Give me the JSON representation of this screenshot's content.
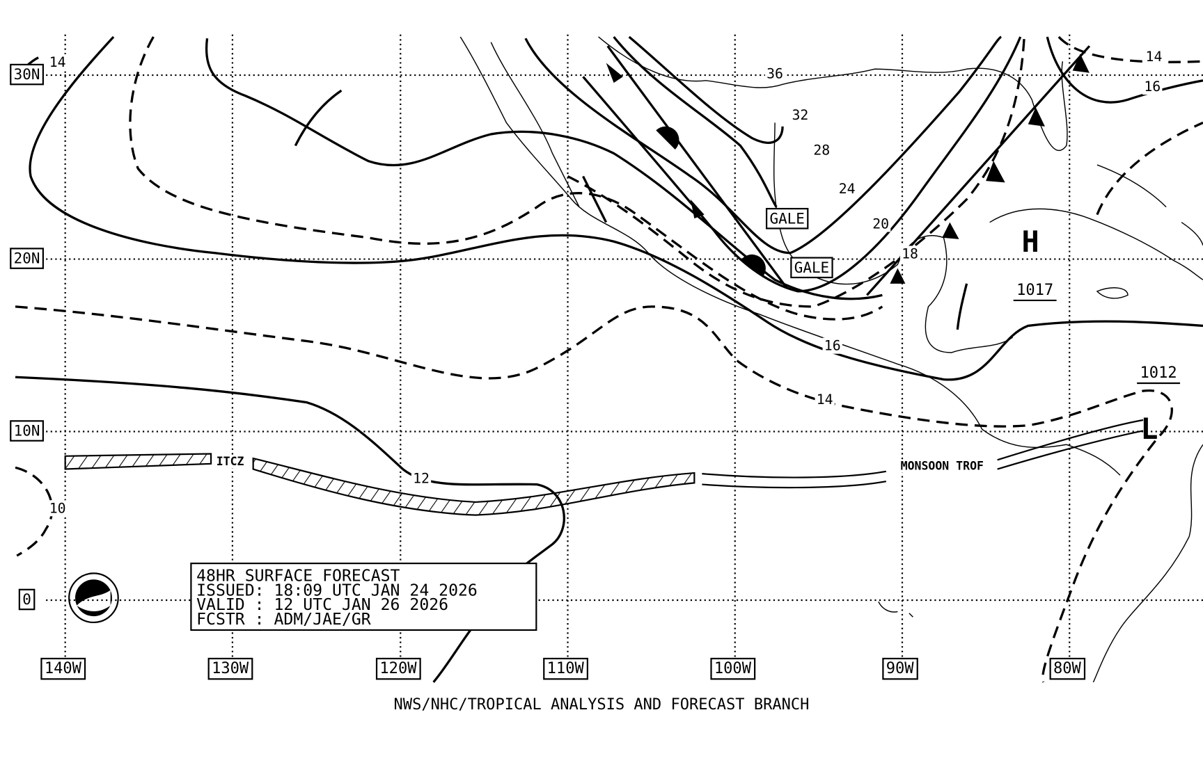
{
  "grid": {
    "latitudes": [
      "30N",
      "20N",
      "10N",
      "0"
    ],
    "longitudes": [
      "140W",
      "130W",
      "120W",
      "110W",
      "100W",
      "90W",
      "80W"
    ]
  },
  "isobar_labels": [
    14,
    36,
    32,
    28,
    24,
    20,
    18,
    16,
    14,
    12,
    10,
    14,
    16
  ],
  "warnings": [
    "GALE",
    "GALE"
  ],
  "pressure_centers": [
    {
      "symbol": "H",
      "pressure": 1017
    },
    {
      "symbol": "L",
      "pressure": 1012
    }
  ],
  "features": [
    "ITCZ",
    "MONSOON TROF"
  ],
  "info_box": [
    "48HR SURFACE FORECAST",
    "ISSUED: 18:09 UTC JAN 24 2026",
    "VALID : 12 UTC JAN 26 2026",
    "FCSTR : ADM/JAE/GR"
  ],
  "footer": "NWS/NHC/TROPICAL ANALYSIS AND FORECAST BRANCH"
}
